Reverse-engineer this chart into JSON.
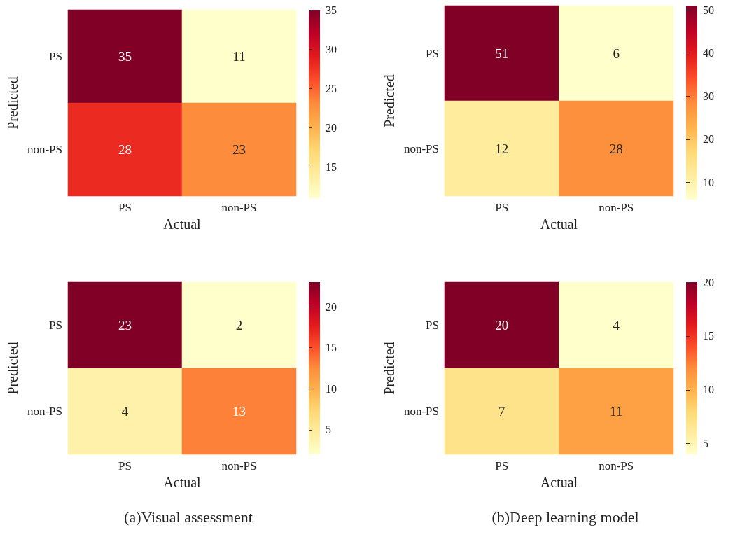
{
  "chart_data": [
    {
      "type": "heatmap",
      "xlabel": "Actual",
      "ylabel": "Predicted",
      "categories": [
        "PS",
        "non-PS"
      ],
      "y_categories": [
        "PS",
        "non-PS"
      ],
      "cells": [
        [
          35,
          11
        ],
        [
          28,
          23
        ]
      ],
      "clim": [
        11,
        35
      ],
      "cticks": [
        15,
        20,
        25,
        30,
        35
      ],
      "data_labels": true
    },
    {
      "type": "heatmap",
      "xlabel": "Actual",
      "ylabel": "Predicted",
      "categories": [
        "PS",
        "non-PS"
      ],
      "y_categories": [
        "PS",
        "non-PS"
      ],
      "cells": [
        [
          51,
          6
        ],
        [
          12,
          28
        ]
      ],
      "clim": [
        6,
        51
      ],
      "cticks": [
        10,
        20,
        30,
        40,
        50
      ],
      "data_labels": true
    },
    {
      "type": "heatmap",
      "xlabel": "Actual",
      "ylabel": "Predicted",
      "categories": [
        "PS",
        "non-PS"
      ],
      "y_categories": [
        "PS",
        "non-PS"
      ],
      "cells": [
        [
          23,
          2
        ],
        [
          4,
          13
        ]
      ],
      "clim": [
        2,
        23
      ],
      "cticks": [
        5,
        10,
        15,
        20
      ],
      "data_labels": true,
      "annotations": [
        "(a)Visual assessment"
      ]
    },
    {
      "type": "heatmap",
      "xlabel": "Actual",
      "ylabel": "Predicted",
      "categories": [
        "PS",
        "non-PS"
      ],
      "y_categories": [
        "PS",
        "non-PS"
      ],
      "cells": [
        [
          20,
          4
        ],
        [
          7,
          11
        ]
      ],
      "clim": [
        4,
        20
      ],
      "cticks": [
        5,
        10,
        15,
        20
      ],
      "data_labels": true,
      "annotations": [
        "(b)Deep learning model"
      ]
    }
  ]
}
